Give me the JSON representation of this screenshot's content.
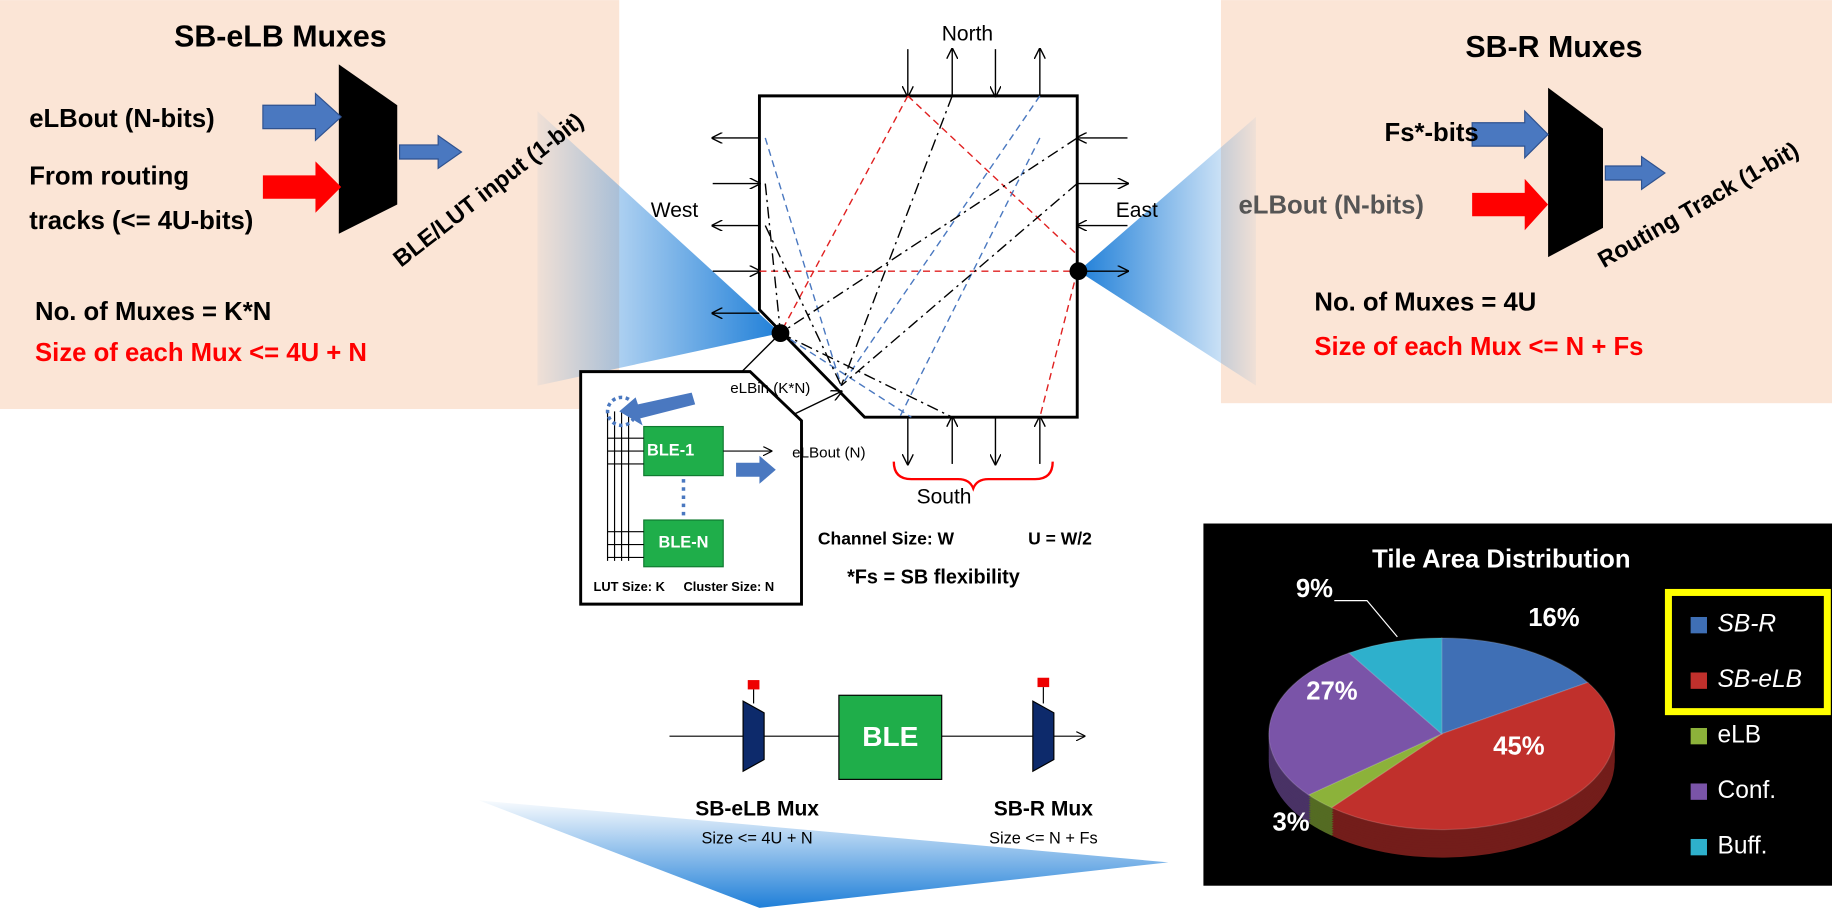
{
  "left_panel": {
    "title": "SB-eLB Muxes",
    "input_1": "eLBout (N-bits)",
    "input_2_line_1": "From routing",
    "input_2_line_2": "tracks (<= 4U-bits)",
    "output": "BLE/LUT input (1-bit)",
    "count": "No. of Muxes = K*N",
    "size": "Size of each Mux <= 4U + N"
  },
  "right_panel": {
    "title": "SB-R Muxes",
    "input_1": "Fs*-bits",
    "input_2": "eLBout (N-bits)",
    "output": "Routing Track (1-bit)",
    "count": "No. of Muxes = 4U",
    "size": "Size of each Mux <= N + Fs"
  },
  "switch_box": {
    "north": "North",
    "south": "South",
    "west": "West",
    "east": "East",
    "elb_in": "eLBin (K*N)",
    "elb_out": "eLBout (N)",
    "channel_size": "Channel Size: W",
    "u_def": "U = W/2",
    "fs_note": "*Fs = SB flexibility"
  },
  "cluster": {
    "ble_first": "BLE-1",
    "ble_last": "BLE-N",
    "lut_size": "LUT Size: K",
    "cluster_size": "Cluster Size: N"
  },
  "path_diagram": {
    "ble": "BLE",
    "left_mux": "SB-eLB Mux",
    "left_size": "Size <= 4U + N",
    "right_mux": "SB-R Mux",
    "right_size": "Size <= N + Fs"
  },
  "pie_chart": {
    "type": "pie",
    "title": "Tile Area Distribution",
    "categories": [
      "SB-R",
      "SB-eLB",
      "eLB",
      "Conf.",
      "Buff."
    ],
    "values": [
      16,
      45,
      3,
      27,
      9
    ],
    "value_labels": [
      "16%",
      "45%",
      "3%",
      "27%",
      "9%"
    ],
    "colors": [
      "#3f6fb5",
      "#c0302c",
      "#8cb23a",
      "#7a54a8",
      "#2eb0cc"
    ]
  }
}
